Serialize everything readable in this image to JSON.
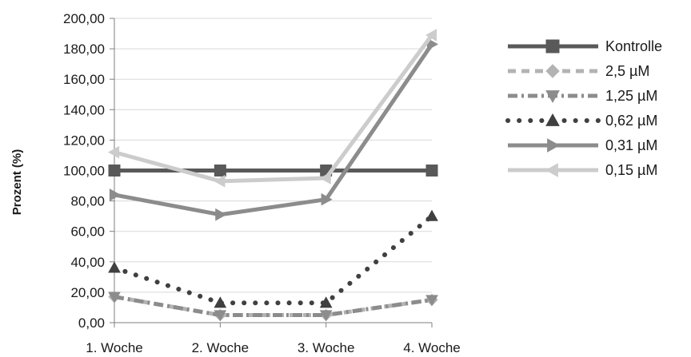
{
  "chart_data": {
    "type": "line",
    "title": "",
    "xlabel": "",
    "ylabel": "Prozent (%)",
    "categories": [
      "1. Woche",
      "2. Woche",
      "3. Woche",
      "4. Woche"
    ],
    "ylim": [
      0,
      200
    ],
    "yticks": [
      "0,00",
      "20,00",
      "40,00",
      "60,00",
      "80,00",
      "100,00",
      "120,00",
      "140,00",
      "160,00",
      "180,00",
      "200,00"
    ],
    "grid": true,
    "legend": "right",
    "series": [
      {
        "name": "Kontrolle",
        "values": [
          100,
          100,
          100,
          100
        ],
        "color": "#595959",
        "dash": "solid",
        "marker": "square"
      },
      {
        "name": "2,5 µM",
        "values": [
          17,
          5,
          5,
          15
        ],
        "color": "#b3b3b3",
        "dash": "dash",
        "marker": "diamond"
      },
      {
        "name": "1,25 µM",
        "values": [
          17,
          5,
          5,
          15
        ],
        "color": "#8c8c8c",
        "dash": "dashdot",
        "marker": "triangle-down"
      },
      {
        "name": "0,62 µM",
        "values": [
          36,
          13,
          13,
          70
        ],
        "color": "#404040",
        "dash": "dot",
        "marker": "triangle-up"
      },
      {
        "name": "0,31 µM",
        "values": [
          84,
          71,
          81,
          183
        ],
        "color": "#8c8c8c",
        "dash": "solid",
        "marker": "triangle-right"
      },
      {
        "name": "0,15 µM",
        "values": [
          112,
          93,
          95,
          189
        ],
        "color": "#cccccc",
        "dash": "solid",
        "marker": "triangle-left"
      }
    ]
  }
}
